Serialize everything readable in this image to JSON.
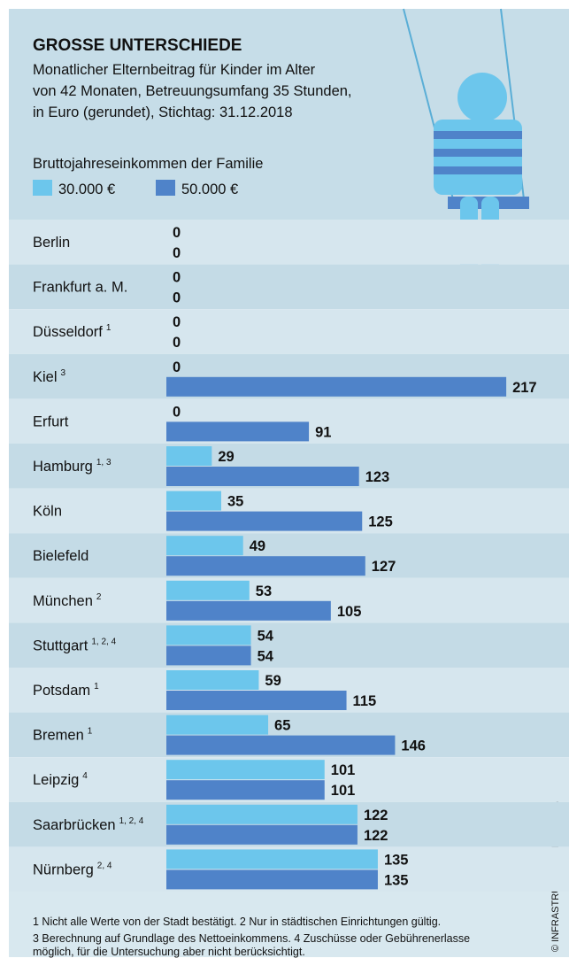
{
  "chart_data": {
    "type": "bar",
    "orientation": "horizontal",
    "title": "GROSSE UNTERSCHIEDE",
    "subtitle": [
      "Monatlicher Elternbeitrag für Kinder im Alter",
      "von 42 Monaten, Betreuungsumfang 35 Stunden,",
      "in Euro (gerundet), Stichtag: 31.12.2018"
    ],
    "legend_title": "Bruttojahreseinkommen der Familie",
    "categories": [
      "Berlin",
      "Frankfurt a. M.",
      "Düsseldorf",
      "Kiel",
      "Erfurt",
      "Hamburg",
      "Köln",
      "Bielefeld",
      "München",
      "Stuttgart",
      "Potsdam",
      "Bremen",
      "Leipzig",
      "Saarbrücken",
      "Nürnberg"
    ],
    "footnote_marks": [
      null,
      null,
      "1",
      "3",
      null,
      "1, 3",
      null,
      null,
      "2",
      "1, 2, 4",
      "1",
      "1",
      "4",
      "1, 2, 4",
      "2, 4"
    ],
    "series": [
      {
        "name": "30.000 €",
        "color": "#6cc6ec",
        "values": [
          0,
          0,
          0,
          0,
          0,
          29,
          35,
          49,
          53,
          54,
          59,
          65,
          101,
          122,
          135
        ]
      },
      {
        "name": "50.000 €",
        "color": "#4f83c9",
        "values": [
          0,
          0,
          0,
          217,
          91,
          123,
          125,
          127,
          105,
          54,
          115,
          146,
          101,
          122,
          135
        ]
      }
    ],
    "notes": [
      "1 Nicht alle Werte von der Stadt bestätigt. 2 Nur in städtischen Einrichtungen gültig.",
      "3 Berechnung auf Grundlage des Nettoeinkommens. 4 Zuschüsse oder Gebührenerlasse",
      "möglich, für die Untersuchung aber nicht berücksichtigt."
    ],
    "credit": "© INFRASTRUKTURATLAS 2020 / IW"
  }
}
